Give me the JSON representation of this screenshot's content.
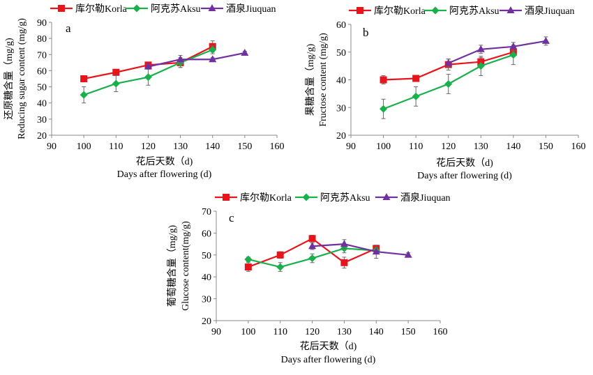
{
  "chart_data": [
    {
      "type": "line",
      "panel_label": "a",
      "xlabel_lines": [
        "花后天数（d)",
        "Days after flowering (d)"
      ],
      "ylabel_lines": [
        "还原糖含量（mg/g)",
        "Reducing sugar content  (mg/g)"
      ],
      "xlim": [
        90,
        160
      ],
      "ylim": [
        20,
        90
      ],
      "xticks": [
        90,
        100,
        110,
        120,
        130,
        140,
        150,
        160
      ],
      "yticks": [
        20,
        30,
        40,
        50,
        60,
        70,
        80,
        90
      ],
      "grid": false,
      "legend": "top",
      "series": [
        {
          "name": "库尔勒Korla",
          "color": "#e8141c",
          "marker": "square",
          "x": [
            100,
            110,
            120,
            130,
            140
          ],
          "y": [
            55,
            59,
            63.5,
            65,
            75
          ],
          "err": [
            1,
            1,
            1.5,
            3,
            3.5
          ]
        },
        {
          "name": "阿克苏Aksu",
          "color": "#18b04a",
          "marker": "diamond",
          "x": [
            100,
            110,
            120,
            130,
            140
          ],
          "y": [
            45,
            52,
            56,
            65,
            73
          ],
          "err": [
            5,
            5,
            5,
            3,
            2.5
          ]
        },
        {
          "name": "酒泉Jiuquan",
          "color": "#7030a0",
          "marker": "triangle",
          "x": [
            120,
            130,
            140,
            150
          ],
          "y": [
            62.5,
            67,
            67,
            71
          ],
          "err": [
            1.5,
            2.5,
            1,
            1
          ]
        }
      ]
    },
    {
      "type": "line",
      "panel_label": "b",
      "xlabel_lines": [
        "花后天数（d)",
        "Days after flowering (d)"
      ],
      "ylabel_lines": [
        "果糖含量（mg/g)",
        "Fructose content (mg/g)"
      ],
      "xlim": [
        90,
        160
      ],
      "ylim": [
        20,
        60
      ],
      "xticks": [
        90,
        100,
        110,
        120,
        130,
        140,
        150,
        160
      ],
      "yticks": [
        20,
        30,
        40,
        50,
        60
      ],
      "grid": false,
      "legend": "top",
      "series": [
        {
          "name": "库尔勒Korla",
          "color": "#e8141c",
          "marker": "square",
          "x": [
            100,
            110,
            120,
            130,
            140
          ],
          "y": [
            40,
            40.5,
            45.5,
            46.5,
            50
          ],
          "err": [
            1.5,
            1,
            2,
            1.5,
            1
          ]
        },
        {
          "name": "阿克苏Aksu",
          "color": "#18b04a",
          "marker": "diamond",
          "x": [
            100,
            110,
            120,
            130,
            140
          ],
          "y": [
            29.5,
            34,
            38.5,
            45,
            49
          ],
          "err": [
            3.5,
            3.5,
            3.5,
            3.5,
            3.5
          ]
        },
        {
          "name": "酒泉Jiuquan",
          "color": "#7030a0",
          "marker": "triangle",
          "x": [
            120,
            130,
            140,
            150
          ],
          "y": [
            46,
            51,
            52,
            54
          ],
          "err": [
            1.5,
            1.5,
            1.5,
            1.5
          ]
        }
      ]
    },
    {
      "type": "line",
      "panel_label": "c",
      "xlabel_lines": [
        "花后天数（d)",
        "Days after flowering (d)"
      ],
      "ylabel_lines": [
        "葡萄糖含量（mg/g)",
        "Glucose content(mg/g)"
      ],
      "xlim": [
        90,
        160
      ],
      "ylim": [
        20,
        70
      ],
      "xticks": [
        90,
        100,
        110,
        120,
        130,
        140,
        150,
        160
      ],
      "yticks": [
        20,
        30,
        40,
        50,
        60,
        70
      ],
      "grid": false,
      "legend": "top",
      "series": [
        {
          "name": "库尔勒Korla",
          "color": "#e8141c",
          "marker": "square",
          "x": [
            100,
            110,
            120,
            130,
            140
          ],
          "y": [
            44.5,
            50,
            57.5,
            46.5,
            53
          ],
          "err": [
            2,
            1.5,
            1.5,
            2.5,
            1
          ]
        },
        {
          "name": "阿克苏Aksu",
          "color": "#18b04a",
          "marker": "diamond",
          "x": [
            100,
            110,
            120,
            130,
            140
          ],
          "y": [
            48,
            44.5,
            48.5,
            53,
            52
          ],
          "err": [
            1,
            2,
            2,
            2,
            1.5
          ]
        },
        {
          "name": "酒泉Jiuquan",
          "color": "#7030a0",
          "marker": "triangle",
          "x": [
            120,
            130,
            140,
            150
          ],
          "y": [
            54,
            55,
            51.5,
            50
          ],
          "err": [
            1.5,
            2,
            3,
            1
          ]
        }
      ]
    }
  ]
}
